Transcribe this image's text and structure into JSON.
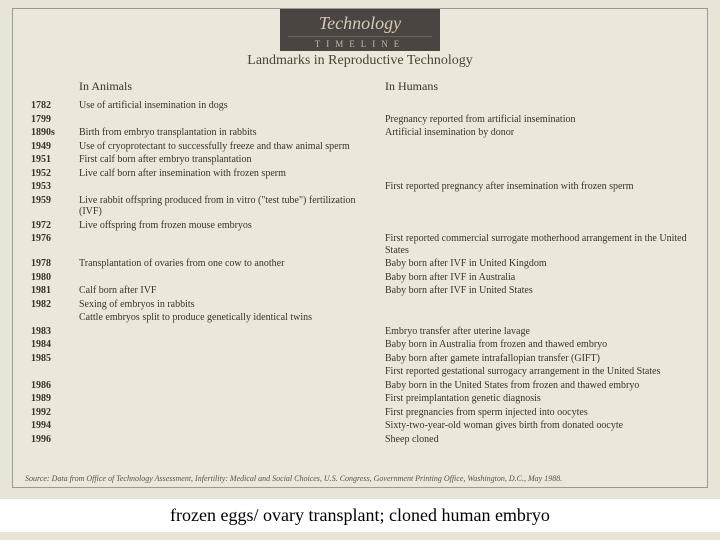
{
  "badge": {
    "line1": "Technology",
    "line2": "TIMELINE"
  },
  "subtitle": "Landmarks in Reproductive Technology",
  "heads": {
    "animals": "In Animals",
    "humans": "In Humans"
  },
  "rows": [
    {
      "year": "1782",
      "animals": "Use of artificial insemination in dogs",
      "humans": ""
    },
    {
      "year": "1799",
      "animals": "",
      "humans": "Pregnancy reported from artificial insemination"
    },
    {
      "year": "1890s",
      "animals": "Birth from embryo transplantation in rabbits",
      "humans": "Artificial insemination by donor"
    },
    {
      "year": "1949",
      "animals": "Use of cryoprotectant to successfully freeze and thaw animal sperm",
      "humans": ""
    },
    {
      "year": "1951",
      "animals": "First calf born after embryo transplantation",
      "humans": ""
    },
    {
      "year": "1952",
      "animals": "Live calf born after insemination with frozen sperm",
      "humans": ""
    },
    {
      "year": "1953",
      "animals": "",
      "humans": "First reported pregnancy after insemination with frozen sperm"
    },
    {
      "year": "1959",
      "animals": "Live rabbit offspring produced from in vitro (\"test tube\") fertilization (IVF)",
      "humans": ""
    },
    {
      "year": "1972",
      "animals": "Live offspring from frozen mouse embryos",
      "humans": ""
    },
    {
      "year": "1976",
      "animals": "",
      "humans": "First reported commercial surrogate motherhood arrangement in the United States"
    },
    {
      "year": "1978",
      "animals": "Transplantation of ovaries from one cow to another",
      "humans": "Baby born after IVF in United Kingdom"
    },
    {
      "year": "1980",
      "animals": "",
      "humans": "Baby born after IVF in Australia"
    },
    {
      "year": "1981",
      "animals": "Calf born after IVF",
      "humans": "Baby born after IVF in United States"
    },
    {
      "year": "1982",
      "animals": "Sexing of embryos in rabbits",
      "humans": ""
    },
    {
      "year": "",
      "animals": "Cattle embryos split to produce genetically identical twins",
      "humans": ""
    },
    {
      "year": "1983",
      "animals": "",
      "humans": "Embryo transfer after uterine lavage"
    },
    {
      "year": "1984",
      "animals": "",
      "humans": "Baby born in Australia from frozen and thawed embryo"
    },
    {
      "year": "1985",
      "animals": "",
      "humans": "Baby born after gamete intrafallopian transfer (GIFT)"
    },
    {
      "year": "",
      "animals": "",
      "humans": "First reported gestational surrogacy arrangement in the United States"
    },
    {
      "year": "1986",
      "animals": "",
      "humans": "Baby born in the United States from frozen and thawed embryo"
    },
    {
      "year": "1989",
      "animals": "",
      "humans": "First preimplantation genetic diagnosis"
    },
    {
      "year": "1992",
      "animals": "",
      "humans": "First pregnancies from sperm injected into oocytes"
    },
    {
      "year": "1994",
      "animals": "",
      "humans": "Sixty-two-year-old woman gives birth from donated oocyte"
    },
    {
      "year": "1996",
      "animals": "",
      "humans": "Sheep cloned"
    }
  ],
  "source": "Source: Data from Office of Technology Assessment, Infertility: Medical and Social Choices, U.S. Congress, Government Printing Office, Washington, D.C., May 1988.",
  "caption": "frozen eggs/ ovary transplant; cloned human embryo"
}
